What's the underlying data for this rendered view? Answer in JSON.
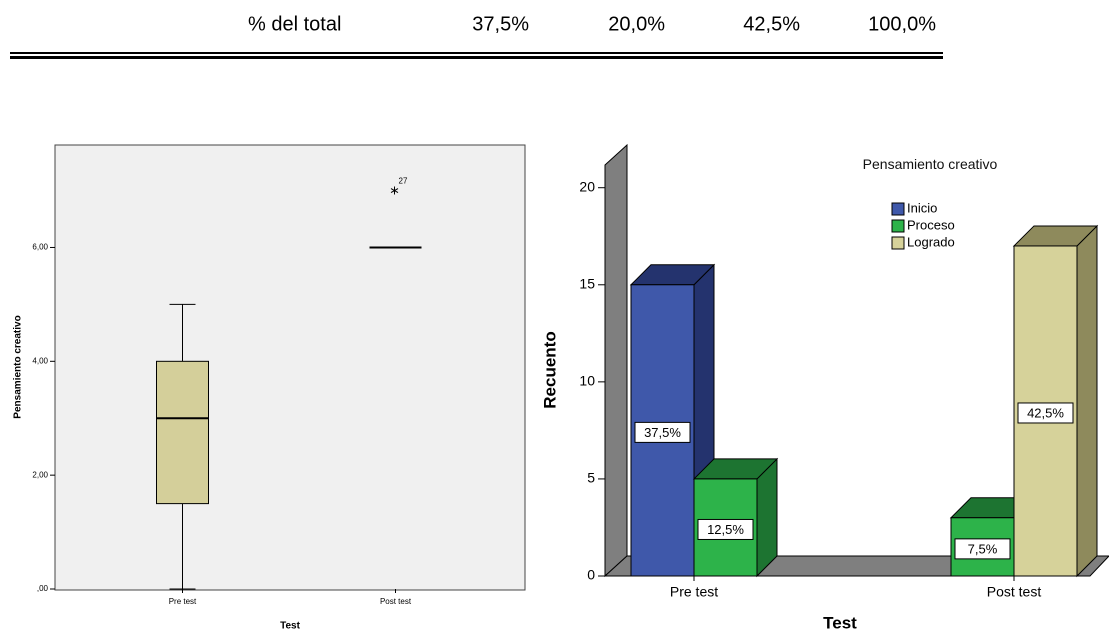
{
  "table": {
    "rows": [
      [
        "% del total",
        "37,5%",
        "20,0%",
        "42,5%",
        "100,0%"
      ]
    ]
  },
  "chart_data": [
    {
      "type": "box",
      "categories": [
        "Pre test",
        "Post test"
      ],
      "xlabel": "Test",
      "ylabel": "Pensamiento creativo",
      "color": "#d4cf9a",
      "boxes": [
        {
          "min": 0,
          "q1": 1.5,
          "median": 3,
          "q3": 4,
          "max": 5
        },
        {
          "min": 6,
          "q1": 6,
          "median": 6,
          "q3": 6,
          "max": 6,
          "outliers": [
            {
              "value": 7,
              "label": "27"
            }
          ]
        }
      ],
      "ylim": [
        0,
        7.8
      ],
      "yticks": [
        {
          "value": 0,
          "label": ",00"
        },
        {
          "value": 2,
          "label": "2,00"
        },
        {
          "value": 4,
          "label": "4,00"
        },
        {
          "value": 6,
          "label": "6,00"
        }
      ]
    },
    {
      "type": "bar",
      "three_d": true,
      "categories": [
        "Pre test",
        "Post test"
      ],
      "xlabel": "Test",
      "ylabel": "Recuento",
      "legend_title": "Pensamiento creativo",
      "series": [
        {
          "name": "Inicio",
          "color": "#3f58aa",
          "side_color": "#24336e",
          "values": [
            15,
            null
          ],
          "percent_labels": [
            "37,5%",
            null
          ]
        },
        {
          "name": "Proceso",
          "color": "#2db34a",
          "side_color": "#1d7431",
          "values": [
            5,
            3
          ],
          "percent_labels": [
            "12,5%",
            "7,5%"
          ]
        },
        {
          "name": "Logrado",
          "color": "#d6d29a",
          "side_color": "#8e8a5c",
          "values": [
            null,
            17
          ],
          "percent_labels": [
            null,
            "42,5%"
          ]
        }
      ],
      "ylim": [
        0,
        22.2
      ],
      "yticks": [
        0,
        5,
        10,
        15,
        20
      ]
    }
  ]
}
